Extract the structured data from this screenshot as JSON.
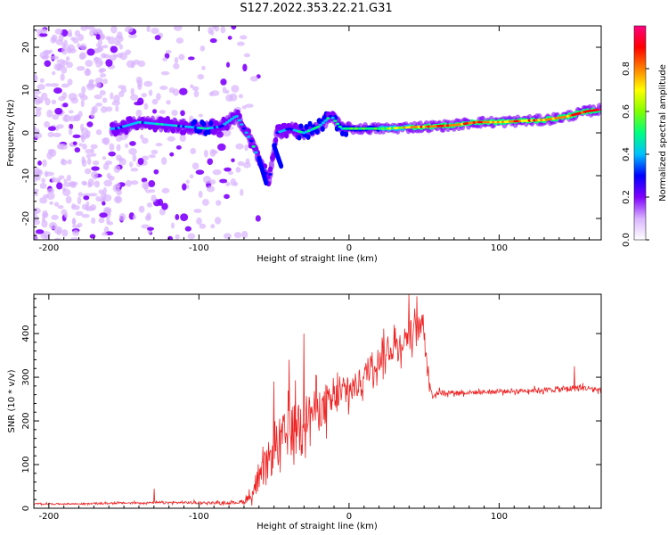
{
  "title": "S127.2022.353.22.21.G31",
  "chart_data": [
    {
      "type": "heatmap",
      "xlabel": "Height of straight line (km)",
      "ylabel": "Frequency (Hz)",
      "xlim": [
        -210,
        168
      ],
      "ylim": [
        -25,
        25
      ],
      "xticks": [
        -200,
        -100,
        0,
        100
      ],
      "yticks": [
        -20,
        -10,
        0,
        10,
        20
      ],
      "grid": false,
      "colorbar": {
        "label": "Normalized spectral amplitude",
        "range": [
          0,
          1
        ],
        "ticks": [
          "0.0",
          "0.2",
          "0.4",
          "0.6",
          "0.8"
        ],
        "colors": [
          "#ffffff",
          "#d9b3ff",
          "#8000ff",
          "#0000ff",
          "#00c0ff",
          "#00ff80",
          "#80ff00",
          "#ffff00",
          "#ff8000",
          "#ff0000",
          "#ff0080"
        ]
      },
      "ridge": [
        {
          "x": -155,
          "f": 1.0,
          "a": 0.35
        },
        {
          "x": -140,
          "f": 2.5,
          "a": 0.4
        },
        {
          "x": -125,
          "f": 2.0,
          "a": 0.4
        },
        {
          "x": -110,
          "f": 1.5,
          "a": 0.4
        },
        {
          "x": -95,
          "f": 1.0,
          "a": 0.45
        },
        {
          "x": -85,
          "f": 1.5,
          "a": 0.35
        },
        {
          "x": -75,
          "f": 4.0,
          "a": 0.35
        },
        {
          "x": -65,
          "f": -2.0,
          "a": 0.4
        },
        {
          "x": -58,
          "f": -8.0,
          "a": 0.35
        },
        {
          "x": -53,
          "f": -11.0,
          "a": 0.3
        },
        {
          "x": -48,
          "f": 0.0,
          "a": 0.35
        },
        {
          "x": -40,
          "f": 1.0,
          "a": 0.35
        },
        {
          "x": -30,
          "f": 0.0,
          "a": 0.45
        },
        {
          "x": -20,
          "f": 1.5,
          "a": 0.45
        },
        {
          "x": -12,
          "f": 4.0,
          "a": 0.4
        },
        {
          "x": -5,
          "f": 1.0,
          "a": 0.45
        },
        {
          "x": 10,
          "f": 1.0,
          "a": 0.55
        },
        {
          "x": 25,
          "f": 1.0,
          "a": 0.6
        },
        {
          "x": 40,
          "f": 1.3,
          "a": 0.75
        },
        {
          "x": 55,
          "f": 1.5,
          "a": 0.85
        },
        {
          "x": 70,
          "f": 1.8,
          "a": 0.8
        },
        {
          "x": 85,
          "f": 2.5,
          "a": 0.85
        },
        {
          "x": 100,
          "f": 2.5,
          "a": 0.75
        },
        {
          "x": 115,
          "f": 2.8,
          "a": 0.8
        },
        {
          "x": 130,
          "f": 3.0,
          "a": 0.75
        },
        {
          "x": 145,
          "f": 3.8,
          "a": 0.8
        },
        {
          "x": 158,
          "f": 5.0,
          "a": 0.85
        },
        {
          "x": 168,
          "f": 5.5,
          "a": 0.9
        }
      ]
    },
    {
      "type": "line",
      "xlabel": "Height of straight line (km)",
      "ylabel": "SNR (10 * v/v)",
      "xlim": [
        -210,
        168
      ],
      "ylim": [
        0,
        490
      ],
      "xticks": [
        -200,
        -100,
        0,
        100
      ],
      "yticks": [
        0,
        100,
        200,
        300,
        400
      ],
      "grid": false,
      "series": [
        {
          "color": "#ee2222",
          "x": [
            -210,
            -180,
            -150,
            -120,
            -100,
            -80,
            -70,
            -65,
            -60,
            -55,
            -50,
            -45,
            -40,
            -35,
            -30,
            -25,
            -20,
            -15,
            -10,
            -5,
            0,
            5,
            10,
            15,
            20,
            25,
            30,
            35,
            40,
            45,
            50,
            52,
            55,
            60,
            70,
            80,
            100,
            120,
            140,
            150,
            160,
            168
          ],
          "y": [
            10,
            10,
            12,
            13,
            13,
            12,
            15,
            30,
            60,
            100,
            130,
            160,
            170,
            200,
            210,
            220,
            230,
            230,
            250,
            260,
            270,
            280,
            300,
            330,
            340,
            360,
            370,
            380,
            400,
            410,
            420,
            330,
            260,
            265,
            265,
            265,
            267,
            270,
            272,
            275,
            275,
            270
          ],
          "noise": [
            3,
            3,
            4,
            4,
            6,
            5,
            10,
            25,
            50,
            80,
            100,
            110,
            110,
            100,
            100,
            90,
            90,
            80,
            80,
            70,
            70,
            60,
            60,
            60,
            60,
            60,
            60,
            60,
            60,
            60,
            50,
            40,
            20,
            12,
            10,
            10,
            10,
            10,
            12,
            15,
            12,
            10
          ],
          "peaks": [
            {
              "x": -130,
              "y": 45
            },
            {
              "x": -50,
              "y": 290
            },
            {
              "x": -40,
              "y": 340
            },
            {
              "x": -30,
              "y": 400
            },
            {
              "x": 30,
              "y": 420
            },
            {
              "x": 40,
              "y": 490
            },
            {
              "x": 45,
              "y": 485
            },
            {
              "x": 150,
              "y": 325
            }
          ]
        }
      ]
    }
  ]
}
